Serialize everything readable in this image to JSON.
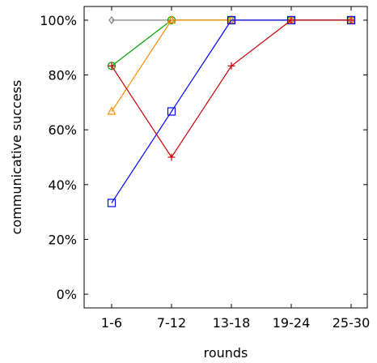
{
  "chart_data": {
    "type": "line",
    "title": "",
    "xlabel": "rounds",
    "ylabel": "communicative success",
    "categories": [
      "1-6",
      "7-12",
      "13-18",
      "19-24",
      "25-30"
    ],
    "yticks": [
      "0%",
      "20%",
      "40%",
      "60%",
      "80%",
      "100%"
    ],
    "ytick_values": [
      0,
      20,
      40,
      60,
      80,
      100
    ],
    "ylim": [
      -5,
      105
    ],
    "grid": false,
    "legend": "none",
    "series": [
      {
        "values": [
          100,
          100,
          100,
          100,
          100
        ],
        "color": "#808080",
        "marker": "diamond"
      },
      {
        "values": [
          83.3,
          100,
          100,
          100,
          100
        ],
        "color": "#00a000",
        "marker": "circle"
      },
      {
        "values": [
          66.7,
          100,
          100,
          100,
          100
        ],
        "color": "#ff8c00",
        "marker": "triangle"
      },
      {
        "values": [
          33.3,
          66.7,
          100,
          100,
          100
        ],
        "color": "#0000ff",
        "marker": "square"
      },
      {
        "values": [
          83.3,
          50,
          83.3,
          100,
          100
        ],
        "color": "#cc0000",
        "marker": "plus"
      }
    ]
  }
}
